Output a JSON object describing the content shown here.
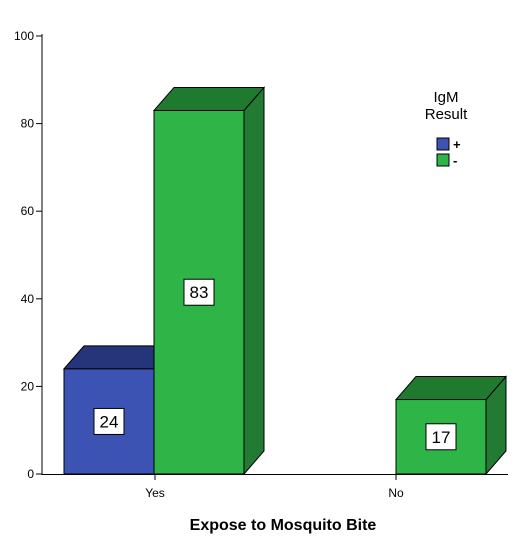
{
  "chart_data": {
    "type": "bar",
    "title": "",
    "xlabel": "Expose to Mosquito Bite",
    "ylabel": "",
    "categories": [
      "Yes",
      "No"
    ],
    "ylim": [
      0,
      100
    ],
    "yticks": [
      0,
      20,
      40,
      60,
      80,
      100
    ],
    "grid": false,
    "legend": {
      "title_lines": [
        "IgM",
        "Result"
      ],
      "placement": "top-right"
    },
    "series": [
      {
        "name": "+",
        "values": [
          24,
          null
        ],
        "labels": [
          "24",
          ""
        ],
        "color": "#3d53b3",
        "top_color": "#26357a",
        "side_color": "#2a3a8a"
      },
      {
        "name": "-",
        "values": [
          83,
          17
        ],
        "labels": [
          "83",
          "17"
        ],
        "color": "#2fb447",
        "top_color": "#1f7a30",
        "side_color": "#237a33"
      }
    ]
  }
}
